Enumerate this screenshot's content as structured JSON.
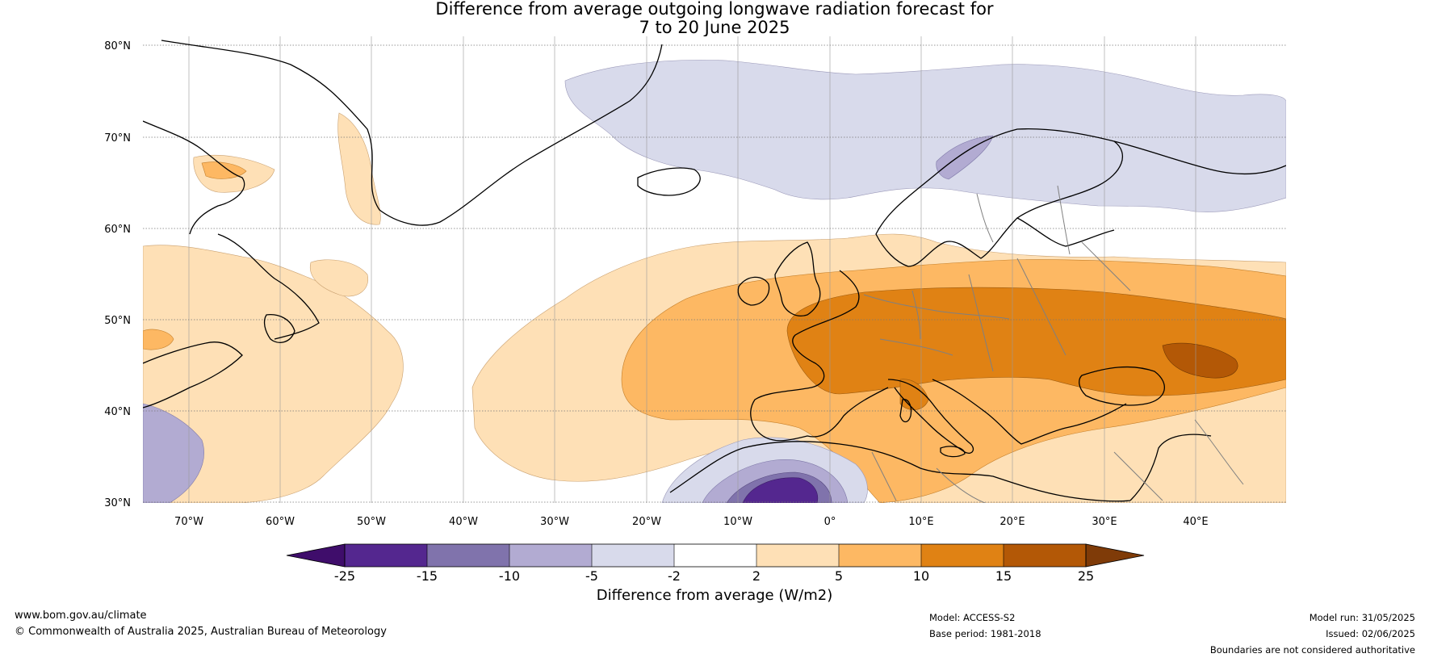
{
  "title_line1": "Difference from average outgoing longwave radiation forecast for",
  "title_line2": "7 to 20 June 2025",
  "lat_labels": [
    "80°N",
    "70°N",
    "60°N",
    "50°N",
    "40°N",
    "30°N"
  ],
  "lon_labels": [
    "70°W",
    "60°W",
    "50°W",
    "40°W",
    "30°W",
    "20°W",
    "10°W",
    "0°",
    "10°E",
    "20°E",
    "30°E",
    "40°E"
  ],
  "colorbar": {
    "label": "Difference from average (W/m2)",
    "ticks": [
      "-25",
      "-15",
      "-10",
      "-5",
      "-2",
      "2",
      "5",
      "10",
      "15",
      "25"
    ],
    "colors": [
      "#3f0d6b",
      "#54278f",
      "#8073ac",
      "#b2abd2",
      "#d8daeb",
      "#ffffff",
      "#fee0b6",
      "#fdb863",
      "#e08214",
      "#b35806",
      "#7f3b08"
    ]
  },
  "footer": {
    "site": "www.bom.gov.au/climate",
    "copyright": "© Commonwealth of Australia 2025, Australian Bureau of Meteorology",
    "model": "Model: ACCESS-S2",
    "base_period": "Base period: 1981-2018",
    "model_run": "Model run: 31/05/2025",
    "issued": "Issued: 02/06/2025",
    "disclaimer": "Boundaries are not considered authoritative"
  }
}
